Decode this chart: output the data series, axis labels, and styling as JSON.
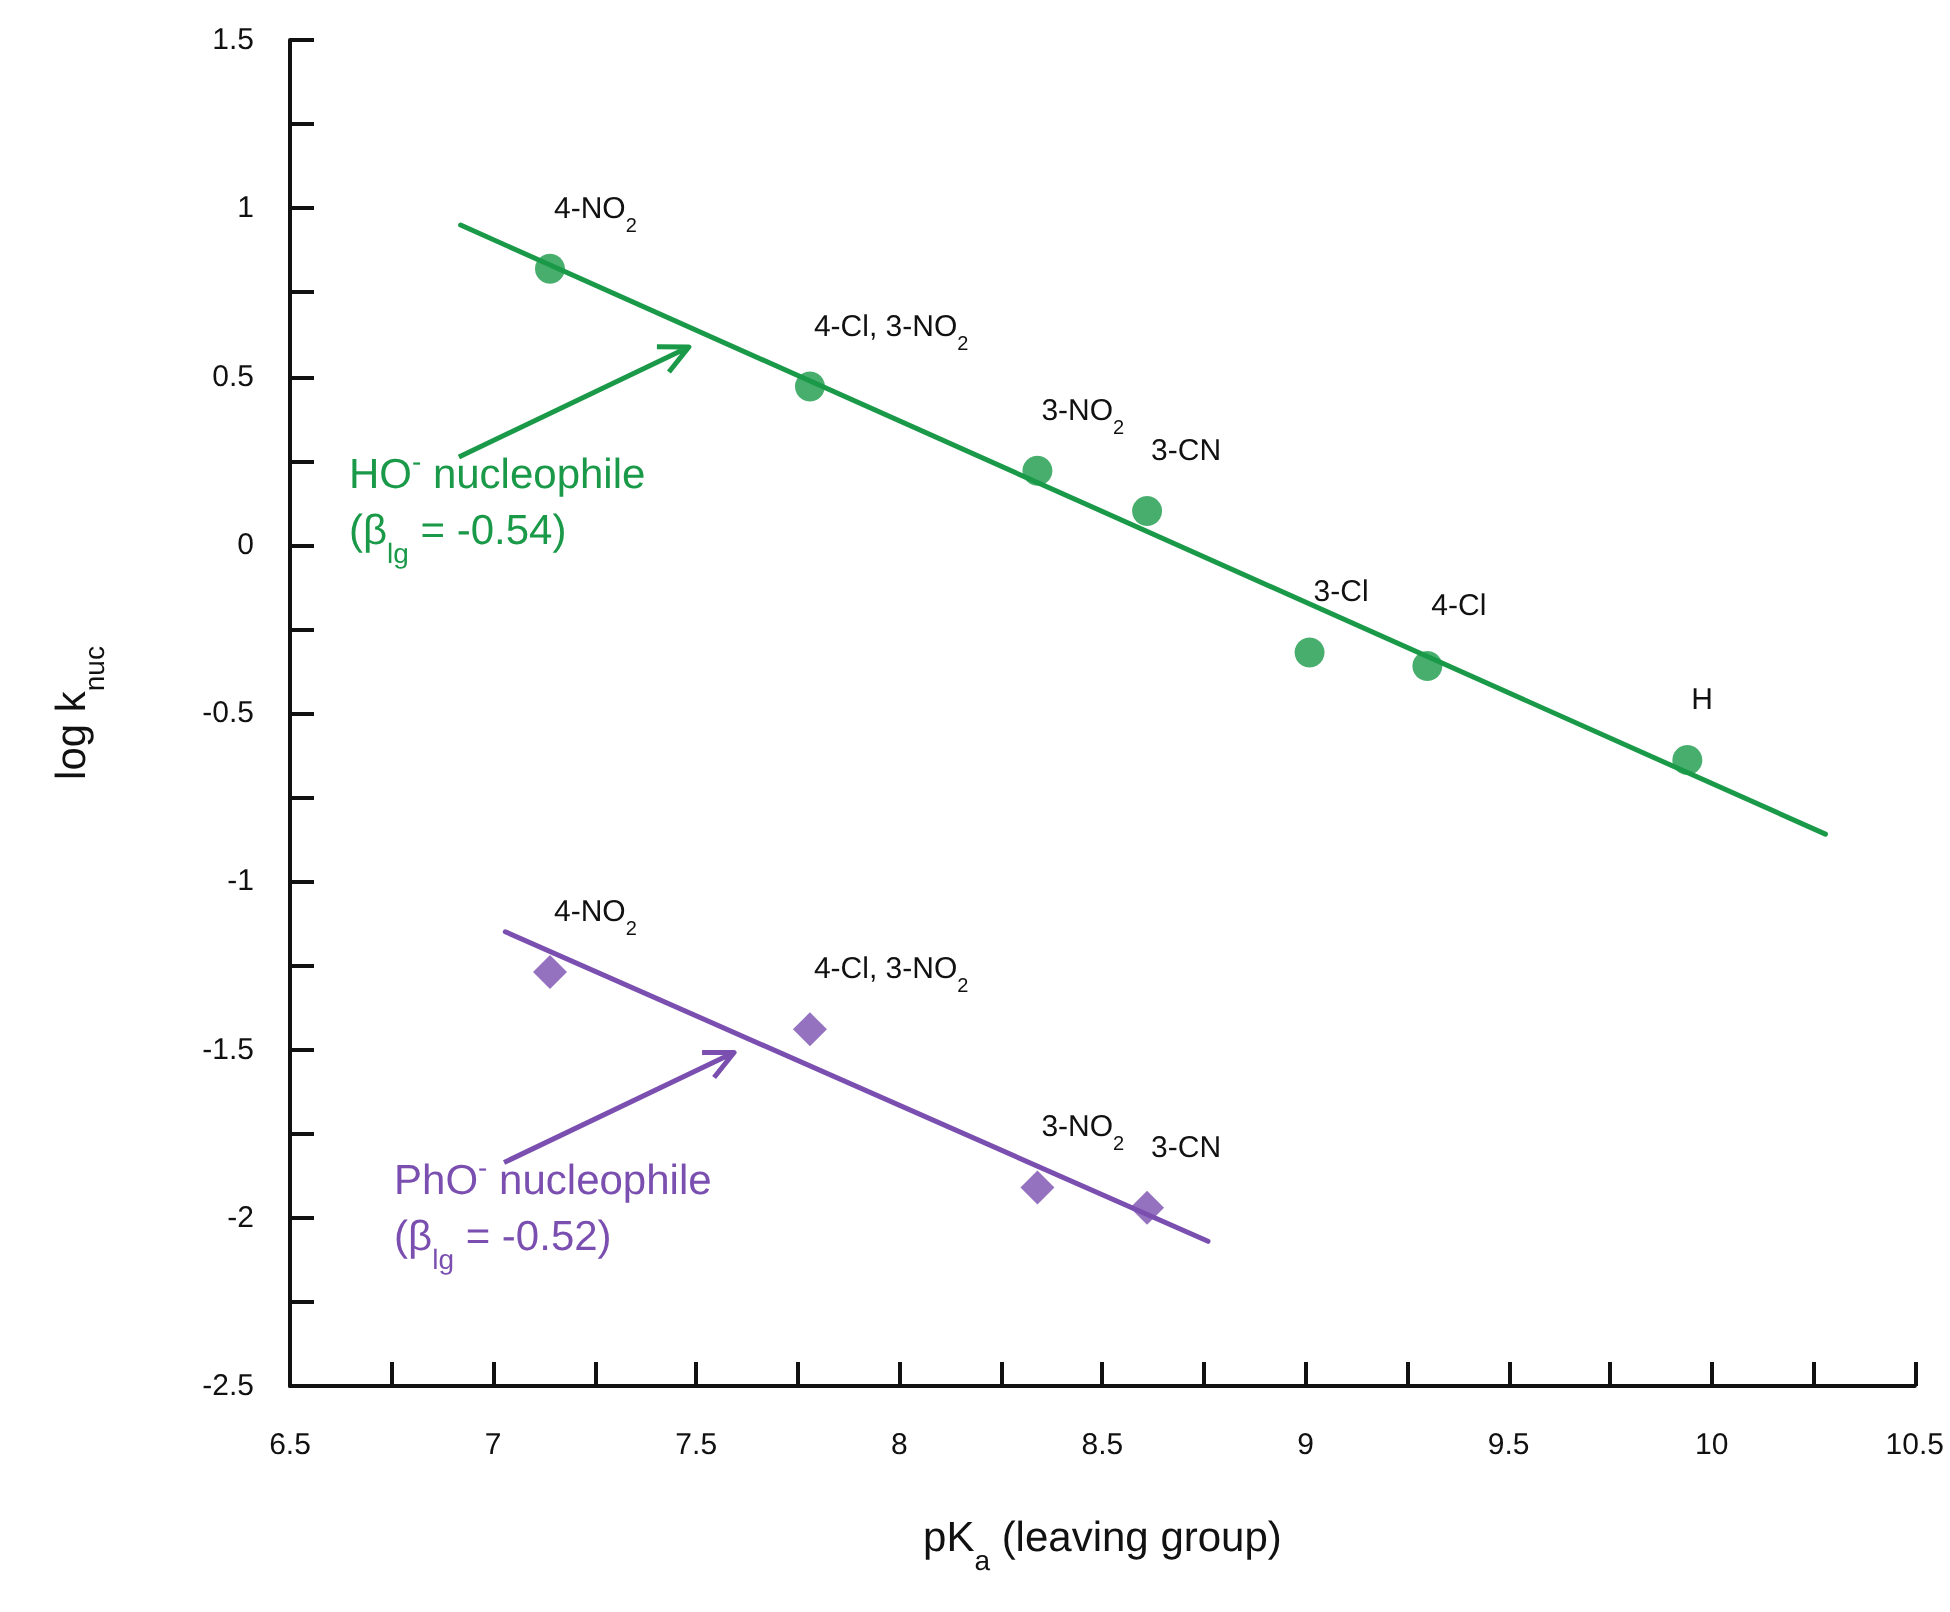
{
  "chart_data": {
    "type": "scatter",
    "xlabel": "pK$_{a}$ (leaving group)",
    "ylabel": "log k$_{nuc}$",
    "xlim": [
      6.5,
      10.5
    ],
    "ylim": [
      -2.5,
      1.5
    ],
    "xticks": [
      6.5,
      {
        "value": 6.75,
        "label": null
      },
      7,
      {
        "value": 7.25,
        "label": null
      },
      7.5,
      {
        "value": 7.75,
        "label": null
      },
      8,
      {
        "value": 8.25,
        "label": null
      },
      8.5,
      {
        "value": 8.75,
        "label": null
      },
      9,
      {
        "value": 9.25,
        "label": null
      },
      9.5,
      {
        "value": 9.75,
        "label": null
      },
      10,
      {
        "value": 10.25,
        "label": null
      },
      10.5
    ],
    "yticks": [
      -2.5,
      {
        "value": -2.25,
        "label": null
      },
      -2,
      {
        "value": -1.75,
        "label": null
      },
      -1.5,
      {
        "value": -1.25,
        "label": null
      },
      -1,
      {
        "value": -0.75,
        "label": null
      },
      -0.5,
      {
        "value": -0.25,
        "label": null
      },
      0,
      {
        "value": 0.25,
        "label": null
      },
      0.5,
      {
        "value": 0.75,
        "label": null
      },
      1,
      {
        "value": 1.25,
        "label": null
      },
      1.5
    ],
    "grid": false,
    "series": [
      {
        "marker": "circle",
        "color": "#1a9a48",
        "x": [
          7.14,
          7.78,
          8.34,
          8.61,
          9.01,
          9.3,
          9.94
        ],
        "values": [
          0.82,
          0.47,
          0.22,
          0.1,
          -0.32,
          -0.36,
          -0.64
        ]
      },
      {
        "marker": "diamond",
        "color": "#7a4fb0",
        "x": [
          7.14,
          7.78,
          8.34,
          8.61
        ],
        "values": [
          -1.27,
          -1.44,
          -1.91,
          -1.97
        ]
      },
      {
        "type": "line",
        "marker": "none",
        "line_style": "solid",
        "color": "#1a9a48",
        "x": [
          6.92,
          10.28
        ],
        "values": [
          0.95,
          -0.86
        ]
      },
      {
        "type": "line",
        "marker": "none",
        "line_style": "solid",
        "color": "#7a4fb0",
        "x": [
          7.03,
          8.76
        ],
        "values": [
          -1.15,
          -2.07
        ]
      }
    ],
    "annotations": [
      {
        "text": "4-NO$_{2}$",
        "x": 7.14,
        "y": 0.82
      },
      {
        "text": "4-Cl, 3-NO$_{2}$",
        "x": 7.78,
        "y": 0.47
      },
      {
        "text": "3-NO$_{2}$",
        "x": 8.34,
        "y": 0.22
      },
      {
        "text": "3-CN",
        "x": 8.61,
        "y": 0.1
      },
      {
        "text": "3-Cl",
        "x": 9.01,
        "y": -0.32
      },
      {
        "text": "4-Cl",
        "x": 9.3,
        "y": -0.36
      },
      {
        "text": "H",
        "x": 9.94,
        "y": -0.64
      },
      {
        "text": "4-NO$_{2}$",
        "x": 7.14,
        "y": -1.27
      },
      {
        "text": "4-Cl, 3-NO$_{2}$",
        "x": 7.78,
        "y": -1.44
      },
      {
        "text": "3-NO$_{2}$",
        "x": 8.34,
        "y": -1.91
      },
      {
        "text": "3-CN",
        "x": 8.61,
        "y": -1.97
      },
      "HO$^{-}$ nucleophile\n(β$_{lg}$ = -0.54)",
      "PhO$^{-}$ nucleophile\n(β$_{lg}$ = -0.52)"
    ]
  }
}
